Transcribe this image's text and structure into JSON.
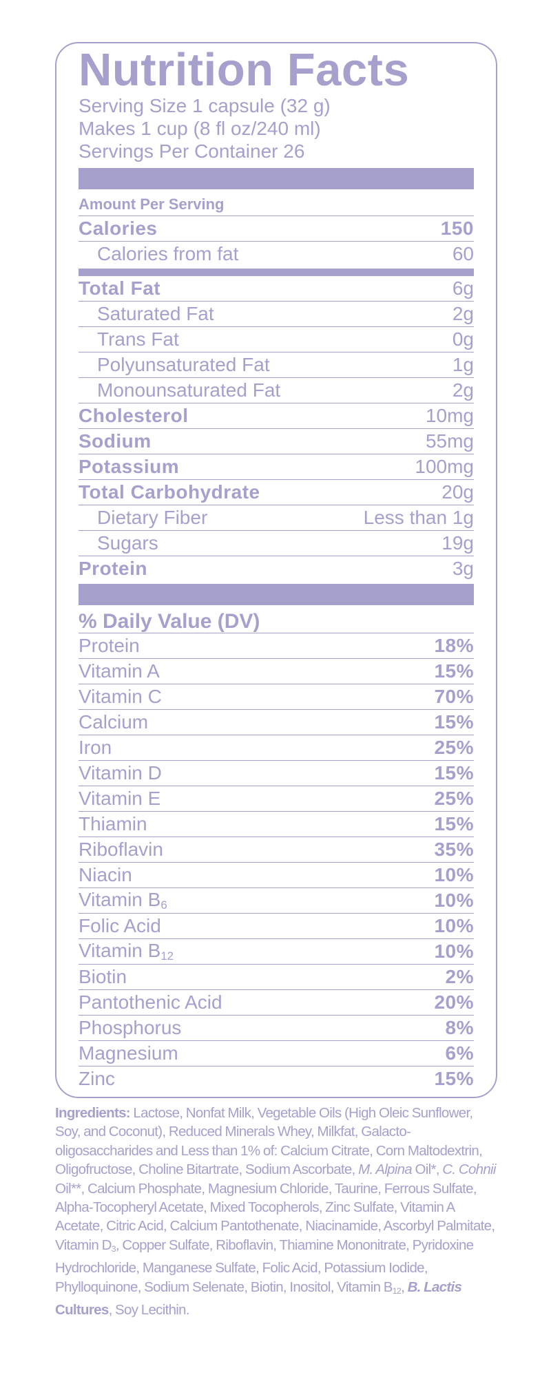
{
  "title": "Nutrition Facts",
  "serving": [
    "Serving Size 1 capsule (32 g)",
    "Makes 1 cup (8 fl oz/240 ml)",
    "Servings Per Container 26"
  ],
  "amount_header": "Amount Per Serving",
  "calories": {
    "name": "Calories",
    "amount": "150"
  },
  "calories_from_fat": {
    "name": "Calories from fat",
    "amount": "60"
  },
  "nutrients": [
    {
      "name": "Total Fat",
      "amount": "6g",
      "sub": [
        {
          "name": "Saturated Fat",
          "amount": "2g"
        },
        {
          "name": "Trans Fat",
          "amount": "0g"
        },
        {
          "name": "Polyunsaturated Fat",
          "amount": "1g"
        },
        {
          "name": "Monounsaturated Fat",
          "amount": "2g"
        }
      ]
    },
    {
      "name": "Cholesterol",
      "amount": "10mg"
    },
    {
      "name": "Sodium",
      "amount": "55mg"
    },
    {
      "name": "Potassium",
      "amount": "100mg"
    },
    {
      "name": "Total Carbohydrate",
      "amount": "20g",
      "sub": [
        {
          "name": "Dietary Fiber",
          "amount": "Less than 1g"
        },
        {
          "name": "Sugars",
          "amount": "19g"
        }
      ]
    },
    {
      "name": "Protein",
      "amount": "3g"
    }
  ],
  "dv_header": "% Daily Value (DV)",
  "daily_values": [
    {
      "name": "Protein",
      "value": "18%"
    },
    {
      "name": "Vitamin A",
      "value": "15%"
    },
    {
      "name": "Vitamin C",
      "value": "70%"
    },
    {
      "name": "Calcium",
      "value": "15%"
    },
    {
      "name": "Iron",
      "value": "25%"
    },
    {
      "name": "Vitamin D",
      "value": "15%"
    },
    {
      "name": "Vitamin E",
      "value": "25%"
    },
    {
      "name": "Thiamin",
      "value": "15%"
    },
    {
      "name": "Riboflavin",
      "value": "35%"
    },
    {
      "name": "Niacin",
      "value": "10%"
    },
    {
      "name": "Vitamin B",
      "subscript": "6",
      "value": "10%"
    },
    {
      "name": "Folic Acid",
      "value": "10%"
    },
    {
      "name": "Vitamin B",
      "subscript": "12",
      "value": "10%"
    },
    {
      "name": "Biotin",
      "value": "2%"
    },
    {
      "name": "Pantothenic Acid",
      "value": "20%"
    },
    {
      "name": "Phosphorus",
      "value": "8%"
    },
    {
      "name": "Magnesium",
      "value": "6%"
    },
    {
      "name": "Zinc",
      "value": "15%"
    }
  ],
  "ingredients": [
    {
      "text": "Ingredients:",
      "style": "bold"
    },
    {
      "text": " Lactose, Nonfat Milk, Vegetable Oils (High Oleic Sunflower, Soy, and Coconut), Reduced Minerals Whey, Milkfat, Galacto-oligosaccharides and Less than 1% of: Calcium Citrate, Corn Maltodextrin, Oligofructose, Choline Bitartrate, Sodium Ascorbate, "
    },
    {
      "text": "M. Alpina",
      "style": "italic"
    },
    {
      "text": " Oil*, "
    },
    {
      "text": "C. Cohnii",
      "style": "italic"
    },
    {
      "text": " Oil**, Calcium Phosphate, Magnesium Chloride, Taurine, Ferrous Sulfate, Alpha-Tocopheryl Acetate, Mixed Tocopherols, Zinc Sulfate, Vitamin A Acetate, Citric Acid, Calcium Pantothenate, Niacinamide, Ascorbyl Palmitate, Vitamin D"
    },
    {
      "text": "3",
      "style": "sub"
    },
    {
      "text": ", Copper Sulfate, Riboflavin, Thiamine Mononitrate, Pyridoxine Hydrochloride, Manganese Sulfate, Folic Acid, Potassium Iodide, Phylloquinone, Sodium Selenate, Biotin, Inositol, Vitamin B"
    },
    {
      "text": "12",
      "style": "sub"
    },
    {
      "text": ", "
    },
    {
      "text": "B. Lactis",
      "style": "bold-italic"
    },
    {
      "text": " Cultures",
      "style": "bold"
    },
    {
      "text": ", Soy Lecithin."
    }
  ]
}
